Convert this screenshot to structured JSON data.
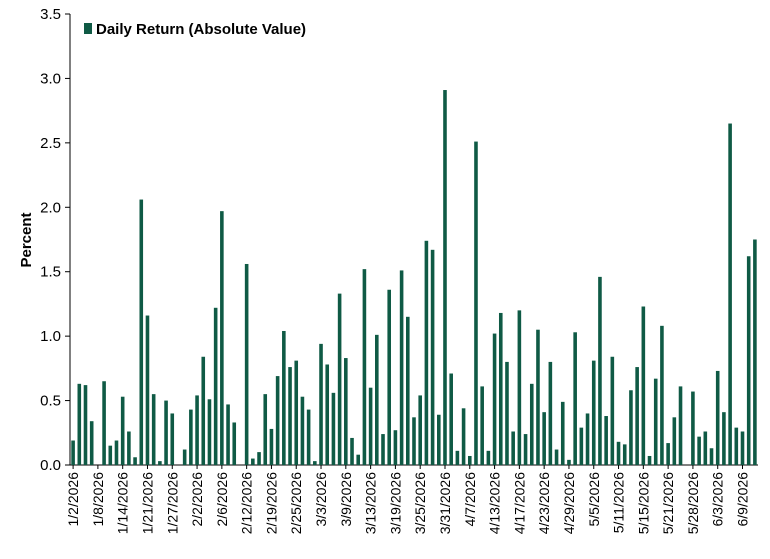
{
  "chart_data": {
    "type": "bar",
    "ylabel": "Percent",
    "ylim": [
      0,
      3.5
    ],
    "yticks": [
      "0.0",
      "0.5",
      "1.0",
      "1.5",
      "2.0",
      "2.5",
      "3.0",
      "3.5"
    ],
    "legend_placement": "top-left",
    "grid": false,
    "color": "#0f5a45",
    "categories": [
      "1/2/2026",
      "1/5/2026",
      "1/6/2026",
      "1/7/2026",
      "1/8/2026",
      "1/9/2026",
      "1/12/2026",
      "1/13/2026",
      "1/14/2026",
      "1/15/2026",
      "1/16/2026",
      "1/20/2026",
      "1/21/2026",
      "1/22/2026",
      "1/23/2026",
      "1/26/2026",
      "1/27/2026",
      "1/28/2026",
      "1/29/2026",
      "1/30/2026",
      "2/2/2026",
      "2/3/2026",
      "2/4/2026",
      "2/5/2026",
      "2/6/2026",
      "2/9/2026",
      "2/10/2026",
      "2/11/2026",
      "2/12/2026",
      "2/13/2026",
      "2/17/2026",
      "2/18/2026",
      "2/19/2026",
      "2/20/2026",
      "2/23/2026",
      "2/24/2026",
      "2/25/2026",
      "2/26/2026",
      "2/27/2026",
      "3/2/2026",
      "3/3/2026",
      "3/4/2026",
      "3/5/2026",
      "3/6/2026",
      "3/9/2026",
      "3/10/2026",
      "3/11/2026",
      "3/12/2026",
      "3/13/2026",
      "3/16/2026",
      "3/17/2026",
      "3/18/2026",
      "3/19/2026",
      "3/20/2026",
      "3/23/2026",
      "3/24/2026",
      "3/25/2026",
      "3/26/2026",
      "3/27/2026",
      "3/30/2026",
      "3/31/2026",
      "4/1/2026",
      "4/2/2026",
      "4/6/2026",
      "4/7/2026",
      "4/8/2026",
      "4/9/2026",
      "4/10/2026",
      "4/13/2026",
      "4/14/2026",
      "4/15/2026",
      "4/16/2026",
      "4/17/2026",
      "4/20/2026",
      "4/21/2026",
      "4/22/2026",
      "4/23/2026",
      "4/24/2026",
      "4/27/2026",
      "4/28/2026",
      "4/29/2026",
      "4/30/2026",
      "5/1/2026",
      "5/4/2026",
      "5/5/2026",
      "5/6/2026",
      "5/7/2026",
      "5/8/2026",
      "5/11/2026",
      "5/12/2026",
      "5/13/2026",
      "5/14/2026",
      "5/15/2026",
      "5/18/2026",
      "5/19/2026",
      "5/20/2026",
      "5/21/2026",
      "5/22/2026",
      "5/26/2026",
      "5/27/2026",
      "5/28/2026",
      "5/29/2026",
      "6/1/2026",
      "6/2/2026",
      "6/3/2026",
      "6/4/2026",
      "6/5/2026",
      "6/8/2026",
      "6/9/2026",
      "6/10/2026",
      "6/11/2026"
    ],
    "tick_labels": [
      "1/2/2026",
      "1/8/2026",
      "1/14/2026",
      "1/21/2026",
      "1/27/2026",
      "2/2/2026",
      "2/6/2026",
      "2/12/2026",
      "2/19/2026",
      "2/25/2026",
      "3/3/2026",
      "3/9/2026",
      "3/13/2026",
      "3/19/2026",
      "3/25/2026",
      "3/31/2026",
      "4/7/2026",
      "4/13/2026",
      "4/17/2026",
      "4/23/2026",
      "4/29/2026",
      "5/5/2026",
      "5/11/2026",
      "5/15/2026",
      "5/21/2026",
      "5/28/2026",
      "6/3/2026",
      "6/9/2026"
    ],
    "series": [
      {
        "name": "Daily Return (Absolute Value)",
        "values": [
          0.19,
          0.63,
          0.62,
          0.34,
          0.0,
          0.65,
          0.15,
          0.19,
          0.53,
          0.26,
          0.06,
          2.06,
          1.16,
          0.55,
          0.03,
          0.5,
          0.4,
          0.0,
          0.12,
          0.43,
          0.54,
          0.84,
          0.51,
          1.22,
          1.97,
          0.47,
          0.33,
          0.0,
          1.56,
          0.05,
          0.1,
          0.55,
          0.28,
          0.69,
          1.04,
          0.76,
          0.81,
          0.53,
          0.43,
          0.03,
          0.94,
          0.78,
          0.56,
          1.33,
          0.83,
          0.21,
          0.08,
          1.52,
          0.6,
          1.01,
          0.24,
          1.36,
          0.27,
          1.51,
          1.15,
          0.37,
          0.54,
          1.74,
          1.67,
          0.39,
          2.91,
          0.71,
          0.11,
          0.44,
          0.07,
          2.51,
          0.61,
          0.11,
          1.02,
          1.18,
          0.8,
          0.26,
          1.2,
          0.24,
          0.63,
          1.05,
          0.41,
          0.8,
          0.12,
          0.49,
          0.04,
          1.03,
          0.29,
          0.4,
          0.81,
          1.46,
          0.38,
          0.84,
          0.18,
          0.16,
          0.58,
          0.76,
          1.23,
          0.07,
          0.67,
          1.08,
          0.17,
          0.37,
          0.61,
          0.0,
          0.57,
          0.22,
          0.26,
          0.13,
          0.73,
          0.41,
          2.65,
          0.29,
          0.26,
          1.62,
          1.75
        ]
      }
    ]
  }
}
